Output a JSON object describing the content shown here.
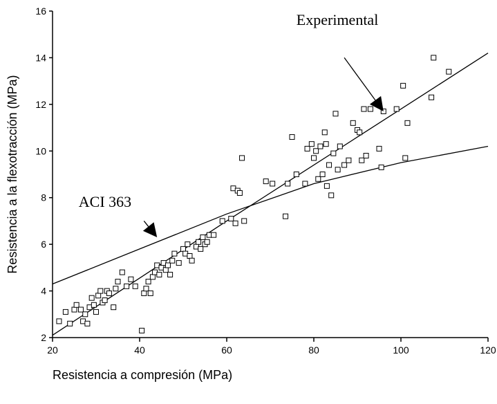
{
  "chart_data": {
    "type": "scatter",
    "title": "",
    "xlabel": "Resistencia a compresión (MPa)",
    "ylabel": "Resistencia a la flexotracción (MPa)",
    "xlim": [
      20,
      120
    ],
    "ylim": [
      2,
      16
    ],
    "xticks": [
      "20",
      "40",
      "60",
      "80",
      "100",
      "120"
    ],
    "yticks": [
      "2",
      "4",
      "6",
      "8",
      "10",
      "12",
      "14",
      "16"
    ],
    "grid": false,
    "marker": "open-square",
    "series": [
      {
        "type": "scatter",
        "points": [
          [
            21.5,
            2.7
          ],
          [
            23.0,
            3.1
          ],
          [
            24.0,
            2.6
          ],
          [
            25.0,
            3.2
          ],
          [
            25.5,
            3.4
          ],
          [
            26.5,
            3.2
          ],
          [
            27.0,
            2.7
          ],
          [
            27.5,
            3.0
          ],
          [
            28.0,
            2.6
          ],
          [
            28.5,
            3.3
          ],
          [
            29.0,
            3.7
          ],
          [
            29.5,
            3.4
          ],
          [
            30.0,
            3.1
          ],
          [
            30.5,
            3.8
          ],
          [
            31.0,
            4.0
          ],
          [
            31.5,
            3.5
          ],
          [
            32.0,
            3.6
          ],
          [
            32.5,
            4.0
          ],
          [
            33.0,
            3.9
          ],
          [
            34.0,
            3.3
          ],
          [
            34.5,
            4.1
          ],
          [
            35.0,
            4.4
          ],
          [
            36.0,
            4.8
          ],
          [
            37.0,
            4.2
          ],
          [
            38.0,
            4.5
          ],
          [
            39.0,
            4.2
          ],
          [
            40.5,
            2.3
          ],
          [
            41.0,
            3.9
          ],
          [
            41.5,
            4.1
          ],
          [
            42.0,
            4.4
          ],
          [
            42.5,
            3.9
          ],
          [
            43.0,
            4.6
          ],
          [
            43.5,
            4.8
          ],
          [
            44.0,
            5.1
          ],
          [
            44.5,
            4.7
          ],
          [
            45.0,
            5.0
          ],
          [
            45.5,
            5.2
          ],
          [
            46.0,
            4.9
          ],
          [
            46.5,
            5.1
          ],
          [
            47.0,
            4.7
          ],
          [
            47.5,
            5.3
          ],
          [
            48.0,
            5.6
          ],
          [
            49.0,
            5.2
          ],
          [
            50.0,
            5.8
          ],
          [
            50.5,
            5.6
          ],
          [
            51.0,
            6.0
          ],
          [
            51.5,
            5.5
          ],
          [
            52.0,
            5.3
          ],
          [
            53.0,
            5.9
          ],
          [
            53.5,
            6.1
          ],
          [
            54.0,
            5.8
          ],
          [
            54.5,
            6.3
          ],
          [
            55.0,
            6.0
          ],
          [
            55.5,
            6.1
          ],
          [
            56.0,
            6.4
          ],
          [
            57.0,
            6.4
          ],
          [
            59.0,
            7.0
          ],
          [
            61.0,
            7.1
          ],
          [
            61.5,
            8.4
          ],
          [
            62.0,
            6.9
          ],
          [
            62.5,
            8.3
          ],
          [
            63.0,
            8.2
          ],
          [
            63.5,
            9.7
          ],
          [
            64.0,
            7.0
          ],
          [
            69.0,
            8.7
          ],
          [
            70.5,
            8.6
          ],
          [
            73.5,
            7.2
          ],
          [
            74.0,
            8.6
          ],
          [
            75.0,
            10.6
          ],
          [
            76.0,
            9.0
          ],
          [
            78.0,
            8.6
          ],
          [
            78.5,
            10.1
          ],
          [
            79.5,
            10.3
          ],
          [
            80.0,
            9.7
          ],
          [
            80.5,
            10.0
          ],
          [
            81.0,
            8.8
          ],
          [
            81.5,
            10.2
          ],
          [
            82.0,
            9.0
          ],
          [
            82.5,
            10.8
          ],
          [
            82.8,
            10.3
          ],
          [
            83.0,
            8.5
          ],
          [
            83.5,
            9.4
          ],
          [
            84.0,
            8.1
          ],
          [
            84.5,
            9.9
          ],
          [
            85.0,
            11.6
          ],
          [
            85.5,
            9.2
          ],
          [
            86.0,
            10.2
          ],
          [
            87.0,
            9.4
          ],
          [
            88.0,
            9.6
          ],
          [
            89.0,
            11.2
          ],
          [
            90.0,
            10.9
          ],
          [
            90.5,
            10.8
          ],
          [
            91.0,
            9.6
          ],
          [
            91.5,
            11.8
          ],
          [
            92.0,
            9.8
          ],
          [
            93.0,
            11.8
          ],
          [
            95.0,
            10.1
          ],
          [
            95.5,
            9.3
          ],
          [
            96.0,
            11.7
          ],
          [
            99.0,
            11.8
          ],
          [
            100.5,
            12.8
          ],
          [
            101.0,
            9.7
          ],
          [
            101.5,
            11.2
          ],
          [
            107.0,
            12.3
          ],
          [
            107.5,
            14.0
          ],
          [
            111.0,
            13.4
          ]
        ]
      },
      {
        "type": "line",
        "points": [
          [
            20,
            2.1
          ],
          [
            60,
            7.0
          ],
          [
            90,
            10.6
          ],
          [
            120,
            14.2
          ]
        ]
      },
      {
        "type": "line",
        "points": [
          [
            20,
            4.3
          ],
          [
            40,
            5.8
          ],
          [
            60,
            7.3
          ],
          [
            80,
            8.6
          ],
          [
            100,
            9.5
          ],
          [
            120,
            10.2
          ]
        ]
      }
    ],
    "annotations": [
      {
        "label": "Experimental",
        "text_x": 76,
        "text_y": 15.4,
        "arrow_from": [
          87,
          14.0
        ],
        "arrow_to": [
          96,
          11.7
        ]
      },
      {
        "label": "ACI 363",
        "text_x": 26,
        "text_y": 7.6,
        "arrow_from": [
          41,
          7.0
        ],
        "arrow_to": [
          44,
          6.3
        ]
      }
    ]
  }
}
